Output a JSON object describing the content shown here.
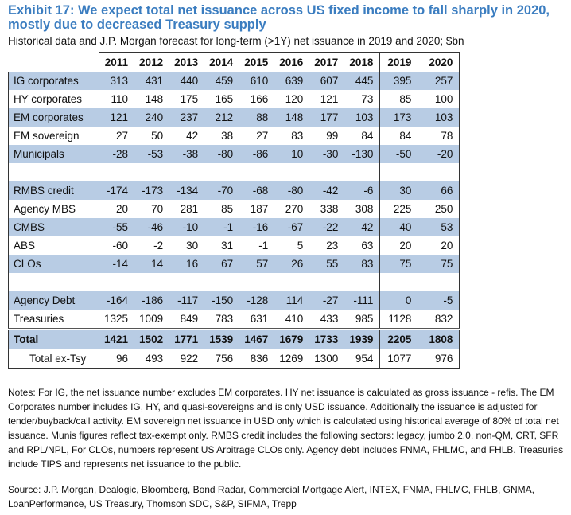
{
  "title": "Exhibit 17: We expect total net issuance across US fixed income to fall sharply in 2020, mostly due to decreased Treasury supply",
  "subtitle": "Historical data and J.P. Morgan forecast for long-term (>1Y) net issuance in 2019 and 2020; $bn",
  "table": {
    "columns": [
      "2011",
      "2012",
      "2013",
      "2014",
      "2015",
      "2016",
      "2017",
      "2018",
      "2019",
      "2020"
    ],
    "rows": [
      {
        "label": "IG corporates",
        "values": [
          "313",
          "431",
          "440",
          "459",
          "610",
          "639",
          "607",
          "445",
          "395",
          "257"
        ],
        "style": "band"
      },
      {
        "label": "HY corporates",
        "values": [
          "110",
          "148",
          "175",
          "165",
          "166",
          "120",
          "121",
          "73",
          "85",
          "100"
        ],
        "style": ""
      },
      {
        "label": "EM corporates",
        "values": [
          "121",
          "240",
          "237",
          "212",
          "88",
          "148",
          "177",
          "103",
          "173",
          "103"
        ],
        "style": "band"
      },
      {
        "label": "EM sovereign",
        "values": [
          "27",
          "50",
          "42",
          "38",
          "27",
          "83",
          "99",
          "84",
          "84",
          "78"
        ],
        "style": ""
      },
      {
        "label": "Municipals",
        "values": [
          "-28",
          "-53",
          "-38",
          "-80",
          "-86",
          "10",
          "-30",
          "-130",
          "-50",
          "-20"
        ],
        "style": "band"
      },
      {
        "label": "",
        "values": [],
        "style": "blank"
      },
      {
        "label": "RMBS credit",
        "values": [
          "-174",
          "-173",
          "-134",
          "-70",
          "-68",
          "-80",
          "-42",
          "-6",
          "30",
          "66"
        ],
        "style": "band"
      },
      {
        "label": "Agency MBS",
        "values": [
          "20",
          "70",
          "281",
          "85",
          "187",
          "270",
          "338",
          "308",
          "225",
          "250"
        ],
        "style": ""
      },
      {
        "label": "CMBS",
        "values": [
          "-55",
          "-46",
          "-10",
          "-1",
          "-16",
          "-67",
          "-22",
          "42",
          "40",
          "53"
        ],
        "style": "band"
      },
      {
        "label": "ABS",
        "values": [
          "-60",
          "-2",
          "30",
          "31",
          "-1",
          "5",
          "23",
          "63",
          "20",
          "20"
        ],
        "style": ""
      },
      {
        "label": "CLOs",
        "values": [
          "-14",
          "14",
          "16",
          "67",
          "57",
          "26",
          "55",
          "83",
          "75",
          "75"
        ],
        "style": "band"
      },
      {
        "label": "",
        "values": [],
        "style": "blank"
      },
      {
        "label": "Agency Debt",
        "values": [
          "-164",
          "-186",
          "-117",
          "-150",
          "-128",
          "114",
          "-27",
          "-111",
          "0",
          "-5"
        ],
        "style": "band"
      },
      {
        "label": "Treasuries",
        "values": [
          "1325",
          "1009",
          "849",
          "783",
          "631",
          "410",
          "433",
          "985",
          "1128",
          "832"
        ],
        "style": ""
      },
      {
        "label": "Total",
        "values": [
          "1421",
          "1502",
          "1771",
          "1539",
          "1467",
          "1679",
          "1733",
          "1939",
          "2205",
          "1808"
        ],
        "style": "band total"
      },
      {
        "label": "Total ex-Tsy",
        "values": [
          "96",
          "493",
          "922",
          "756",
          "836",
          "1269",
          "1300",
          "954",
          "1077",
          "976"
        ],
        "style": "extsy"
      }
    ]
  },
  "notes": "Notes:  For IG, the net issuance number excludes EM corporates.  HY net issuance is calculated as gross issuance - refis.  The EM Corporates number includes IG, HY, and quasi-sovereigns and is only USD issuance.  Additionally the issuance is adjusted for tender/buyback/call activity.  EM sovereign net issuance in USD only which is calculated using historical average of 80% of total net issuance.  Munis figures reflect tax-exempt only.  RMBS credit includes the following sectors: legacy, jumbo 2.0, non-QM, CRT, SFR and RPL/NPL, For CLOs, numbers represent US Arbitrage CLOs only.  Agency debt includes FNMA, FHLMC, and FHLB.  Treasuries include TIPS and represents net issuance to the public.",
  "source": "Source: J.P. Morgan, Dealogic, Bloomberg, Bond Radar, Commercial Mortgage Alert, INTEX, FNMA, FHLMC, FHLB, GNMA, LoanPerformance, US Treasury, Thomson SDC, S&P, SIFMA, Trepp",
  "colors": {
    "title": "#3b7dc0",
    "band": "#b8cce4"
  }
}
